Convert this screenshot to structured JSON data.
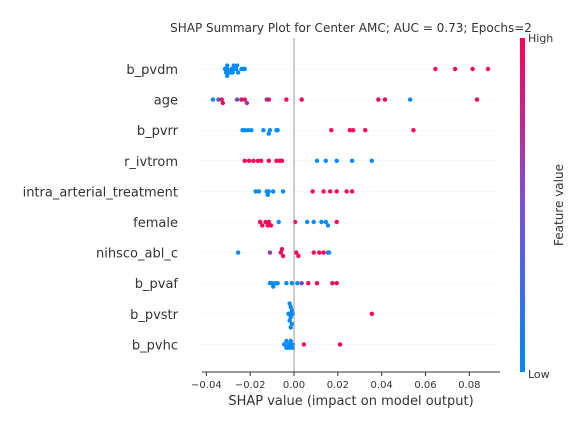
{
  "chart_data": {
    "type": "scatter",
    "title": "SHAP Summary Plot for Center AMC; AUC = 0.73; Epochs=2",
    "xlabel": "SHAP value (impact on model output)",
    "xlim": [
      -0.042,
      0.094
    ],
    "xticks": [
      {
        "value": -0.04,
        "label": "−0.04"
      },
      {
        "value": -0.02,
        "label": "−0.02"
      },
      {
        "value": 0.0,
        "label": "0.00"
      },
      {
        "value": 0.02,
        "label": "0.02"
      },
      {
        "value": 0.04,
        "label": "0.04"
      },
      {
        "value": 0.06,
        "label": "0.06"
      },
      {
        "value": 0.08,
        "label": "0.08"
      }
    ],
    "colorbar": {
      "label": "Feature value",
      "high": "High",
      "low": "Low",
      "low_color": "#008bfb",
      "high_color": "#ff0052"
    },
    "features": [
      {
        "name": "b_pvdm",
        "points": [
          [
            -0.0315,
            0.0
          ],
          [
            -0.0305,
            0.0
          ],
          [
            -0.0295,
            0.0
          ],
          [
            -0.0285,
            0.0
          ],
          [
            -0.0275,
            0.0
          ],
          [
            -0.0265,
            0.0
          ],
          [
            -0.0255,
            0.0
          ],
          [
            -0.024,
            0.0
          ],
          [
            -0.0225,
            0.0
          ],
          [
            -0.031,
            0.0
          ],
          [
            -0.0285,
            0.0
          ],
          [
            -0.026,
            0.0
          ],
          [
            -0.023,
            0.0
          ],
          [
            -0.0305,
            0.0
          ],
          [
            -0.028,
            0.0
          ],
          [
            -0.0305,
            0.0
          ],
          [
            -0.0275,
            0.0
          ],
          [
            0.0645,
            1.0
          ],
          [
            0.0735,
            1.0
          ],
          [
            0.0815,
            1.0
          ],
          [
            0.0885,
            1.0
          ]
        ]
      },
      {
        "name": "age",
        "points": [
          [
            -0.037,
            0.0
          ],
          [
            -0.0345,
            0.35
          ],
          [
            -0.033,
            0.9
          ],
          [
            -0.0325,
            0.9
          ],
          [
            -0.026,
            0.4
          ],
          [
            -0.024,
            0.85
          ],
          [
            -0.0225,
            0.95
          ],
          [
            -0.0215,
            0.55
          ],
          [
            -0.0125,
            0.5
          ],
          [
            -0.0115,
            0.9
          ],
          [
            -0.0035,
            1.0
          ],
          [
            0.0035,
            1.0
          ],
          [
            0.0385,
            1.0
          ],
          [
            0.0415,
            1.0
          ],
          [
            0.053,
            0.0
          ],
          [
            0.0835,
            1.0
          ]
        ]
      },
      {
        "name": "b_pvrr",
        "points": [
          [
            -0.0235,
            0.0
          ],
          [
            -0.0225,
            0.0
          ],
          [
            -0.021,
            0.0
          ],
          [
            -0.0195,
            0.0
          ],
          [
            -0.014,
            0.0
          ],
          [
            -0.011,
            0.0
          ],
          [
            -0.008,
            0.0
          ],
          [
            -0.0075,
            0.0
          ],
          [
            -0.0115,
            0.0
          ],
          [
            0.017,
            1.0
          ],
          [
            0.0255,
            1.0
          ],
          [
            0.027,
            1.0
          ],
          [
            0.0325,
            1.0
          ],
          [
            0.0545,
            1.0
          ]
        ]
      },
      {
        "name": "r_ivtrom",
        "points": [
          [
            -0.0225,
            1.0
          ],
          [
            -0.0205,
            1.0
          ],
          [
            -0.0185,
            1.0
          ],
          [
            -0.0165,
            1.0
          ],
          [
            -0.015,
            1.0
          ],
          [
            -0.0115,
            1.0
          ],
          [
            -0.008,
            1.0
          ],
          [
            -0.0065,
            1.0
          ],
          [
            -0.0055,
            1.0
          ],
          [
            0.0105,
            0.0
          ],
          [
            0.0145,
            0.0
          ],
          [
            0.0195,
            0.0
          ],
          [
            0.0265,
            0.0
          ],
          [
            0.0355,
            0.0
          ]
        ]
      },
      {
        "name": "intra_arterial_treatment",
        "points": [
          [
            -0.0175,
            0.0
          ],
          [
            -0.016,
            0.0
          ],
          [
            -0.0125,
            0.0
          ],
          [
            -0.0115,
            0.0
          ],
          [
            -0.0095,
            0.0
          ],
          [
            -0.005,
            0.0
          ],
          [
            -0.012,
            0.0
          ],
          [
            0.0085,
            1.0
          ],
          [
            0.0135,
            1.0
          ],
          [
            0.0165,
            1.0
          ],
          [
            0.0195,
            1.0
          ],
          [
            0.024,
            1.0
          ],
          [
            0.0265,
            1.0
          ]
        ]
      },
      {
        "name": "female",
        "points": [
          [
            -0.0155,
            1.0
          ],
          [
            -0.0145,
            1.0
          ],
          [
            -0.013,
            1.0
          ],
          [
            -0.012,
            1.0
          ],
          [
            -0.0115,
            1.0
          ],
          [
            -0.0105,
            1.0
          ],
          [
            -0.007,
            0.0
          ],
          [
            0.0005,
            1.0
          ],
          [
            0.006,
            0.0
          ],
          [
            0.009,
            0.0
          ],
          [
            0.0125,
            0.0
          ],
          [
            0.0145,
            0.0
          ],
          [
            0.0155,
            0.0
          ],
          [
            0.0195,
            1.0
          ]
        ]
      },
      {
        "name": "nihsco_abl_c",
        "points": [
          [
            -0.0255,
            0.0
          ],
          [
            -0.011,
            0.55
          ],
          [
            -0.006,
            0.95
          ],
          [
            -0.005,
            0.9
          ],
          [
            -0.0055,
            0.9
          ],
          [
            0.001,
            1.0
          ],
          [
            0.002,
            1.0
          ],
          [
            0.009,
            1.0
          ],
          [
            0.0115,
            1.0
          ],
          [
            0.0135,
            1.0
          ],
          [
            0.0155,
            0.2
          ],
          [
            0.016,
            0.0
          ]
        ]
      },
      {
        "name": "b_pvaf",
        "points": [
          [
            -0.011,
            0.0
          ],
          [
            -0.01,
            0.0
          ],
          [
            -0.0085,
            0.0
          ],
          [
            -0.0075,
            0.0
          ],
          [
            -0.0095,
            0.0
          ],
          [
            -0.0035,
            0.0
          ],
          [
            -0.001,
            0.0
          ],
          [
            0.0015,
            0.0
          ],
          [
            0.0035,
            0.45
          ],
          [
            0.0065,
            1.0
          ],
          [
            0.0105,
            1.0
          ],
          [
            0.0175,
            1.0
          ],
          [
            0.0195,
            1.0
          ]
        ]
      },
      {
        "name": "b_pvstr",
        "points": [
          [
            -0.0025,
            0.0
          ],
          [
            -0.002,
            0.0
          ],
          [
            -0.0015,
            0.0
          ],
          [
            -0.001,
            0.0
          ],
          [
            -0.0005,
            0.0
          ],
          [
            -0.002,
            0.0
          ],
          [
            -0.0015,
            0.0
          ],
          [
            -0.001,
            0.0
          ],
          [
            -0.002,
            0.0
          ],
          [
            -0.0015,
            0.0
          ],
          [
            0.0355,
            1.0
          ]
        ]
      },
      {
        "name": "b_pvhc",
        "points": [
          [
            -0.0045,
            0.0
          ],
          [
            -0.0035,
            0.0
          ],
          [
            -0.0025,
            0.0
          ],
          [
            -0.0015,
            0.0
          ],
          [
            -0.0005,
            0.0
          ],
          [
            -0.0035,
            0.0
          ],
          [
            -0.002,
            0.0
          ],
          [
            -0.0005,
            0.0
          ],
          [
            -0.0015,
            0.0
          ],
          [
            0.0045,
            1.0
          ],
          [
            0.021,
            1.0
          ]
        ]
      }
    ]
  }
}
